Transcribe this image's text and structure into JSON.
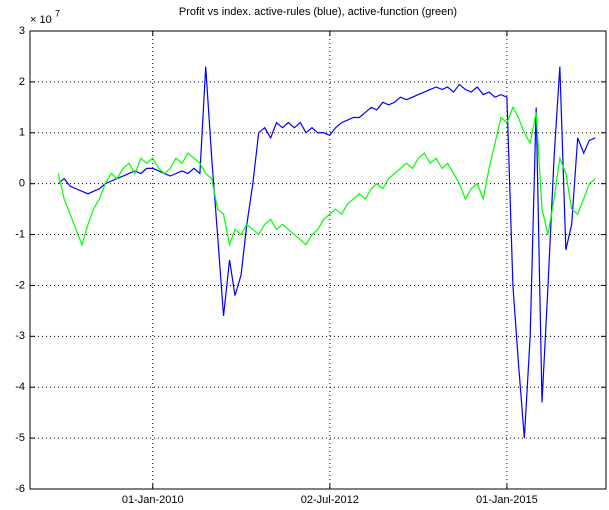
{
  "chart_data": {
    "type": "line",
    "title": "Profit vs index. active-rules (blue), active-function (green)",
    "y_multiplier": "× 10",
    "y_multiplier_exp": 7,
    "x": [
      "2008-09",
      "2008-10",
      "2008-11",
      "2008-12",
      "2009-01",
      "2009-02",
      "2009-03",
      "2009-04",
      "2009-05",
      "2009-06",
      "2009-07",
      "2009-08",
      "2009-09",
      "2009-10",
      "2009-11",
      "2009-12",
      "2010-01",
      "2010-02",
      "2010-03",
      "2010-04",
      "2010-05",
      "2010-06",
      "2010-07",
      "2010-08",
      "2010-09",
      "2010-10",
      "2010-11",
      "2010-12",
      "2011-01",
      "2011-02",
      "2011-03",
      "2011-04",
      "2011-05",
      "2011-06",
      "2011-07",
      "2011-08",
      "2011-09",
      "2011-10",
      "2011-11",
      "2011-12",
      "2012-01",
      "2012-02",
      "2012-03",
      "2012-04",
      "2012-05",
      "2012-06",
      "2012-07",
      "2012-08",
      "2012-09",
      "2012-10",
      "2012-11",
      "2012-12",
      "2013-01",
      "2013-02",
      "2013-03",
      "2013-04",
      "2013-05",
      "2013-06",
      "2013-07",
      "2013-08",
      "2013-09",
      "2013-10",
      "2013-11",
      "2013-12",
      "2014-01",
      "2014-02",
      "2014-03",
      "2014-04",
      "2014-05",
      "2014-06",
      "2014-07",
      "2014-08",
      "2014-09",
      "2014-10",
      "2014-11",
      "2014-12",
      "2015-01",
      "2015-02",
      "2015-03",
      "2015-04",
      "2015-05",
      "2015-06",
      "2015-07",
      "2015-08",
      "2015-09",
      "2015-10",
      "2015-11",
      "2015-12",
      "2016-01",
      "2016-02",
      "2016-03",
      "2016-04"
    ],
    "series": [
      {
        "name": "active-rules",
        "color": "#0000ff",
        "values": [
          0.0,
          0.1,
          -0.05,
          -0.1,
          -0.15,
          -0.2,
          -0.15,
          -0.1,
          0.0,
          0.05,
          0.1,
          0.15,
          0.2,
          0.25,
          0.2,
          0.3,
          0.3,
          0.25,
          0.2,
          0.15,
          0.2,
          0.25,
          0.2,
          0.3,
          0.2,
          2.3,
          0.5,
          -1.0,
          -2.6,
          -1.5,
          -2.2,
          -1.8,
          -0.8,
          0.0,
          1.0,
          1.1,
          0.9,
          1.2,
          1.1,
          1.2,
          1.1,
          1.2,
          1.0,
          1.1,
          1.0,
          1.0,
          0.95,
          1.1,
          1.2,
          1.25,
          1.3,
          1.3,
          1.4,
          1.5,
          1.45,
          1.6,
          1.55,
          1.6,
          1.7,
          1.65,
          1.7,
          1.75,
          1.8,
          1.85,
          1.9,
          1.85,
          1.9,
          1.8,
          1.95,
          1.85,
          1.8,
          1.9,
          1.75,
          1.8,
          1.7,
          1.75,
          1.7,
          -2.0,
          -3.5,
          -5.0,
          -3.0,
          1.5,
          -4.3,
          -2.0,
          0.5,
          2.3,
          -1.3,
          -0.8,
          0.9,
          0.6,
          0.85,
          0.9
        ]
      },
      {
        "name": "active-function",
        "color": "#00ff00",
        "values": [
          0.2,
          -0.3,
          -0.6,
          -0.9,
          -1.2,
          -0.8,
          -0.5,
          -0.3,
          0.0,
          0.2,
          0.1,
          0.3,
          0.4,
          0.2,
          0.5,
          0.4,
          0.5,
          0.3,
          0.2,
          0.3,
          0.5,
          0.4,
          0.6,
          0.5,
          0.4,
          0.2,
          0.1,
          -0.5,
          -0.6,
          -1.2,
          -0.9,
          -1.0,
          -0.8,
          -0.9,
          -1.0,
          -0.8,
          -0.7,
          -0.9,
          -0.8,
          -0.9,
          -1.0,
          -1.1,
          -1.2,
          -1.0,
          -0.9,
          -0.7,
          -0.6,
          -0.5,
          -0.6,
          -0.4,
          -0.3,
          -0.2,
          -0.3,
          -0.1,
          0.0,
          -0.1,
          0.1,
          0.2,
          0.3,
          0.4,
          0.3,
          0.5,
          0.6,
          0.4,
          0.5,
          0.3,
          0.4,
          0.2,
          0.0,
          -0.3,
          -0.1,
          0.0,
          -0.3,
          0.3,
          0.8,
          1.3,
          1.2,
          1.5,
          1.3,
          1.0,
          0.8,
          1.4,
          -0.5,
          -1.0,
          -0.3,
          0.5,
          0.2,
          -0.5,
          -0.6,
          -0.3,
          0.0,
          0.1
        ]
      }
    ],
    "xlim": [
      "2008-04-08",
      "2016-05-26"
    ],
    "xticks": [
      {
        "value": "2010-01-01",
        "label": "01-Jan-2010"
      },
      {
        "value": "2012-07-02",
        "label": "02-Jul-2012"
      },
      {
        "value": "2015-01-01",
        "label": "01-Jan-2015"
      }
    ],
    "ylim": [
      -6,
      3
    ],
    "yticks": [
      -6,
      -5,
      -4,
      -3,
      -2,
      -1,
      0,
      1,
      2,
      3
    ],
    "grid": true
  }
}
